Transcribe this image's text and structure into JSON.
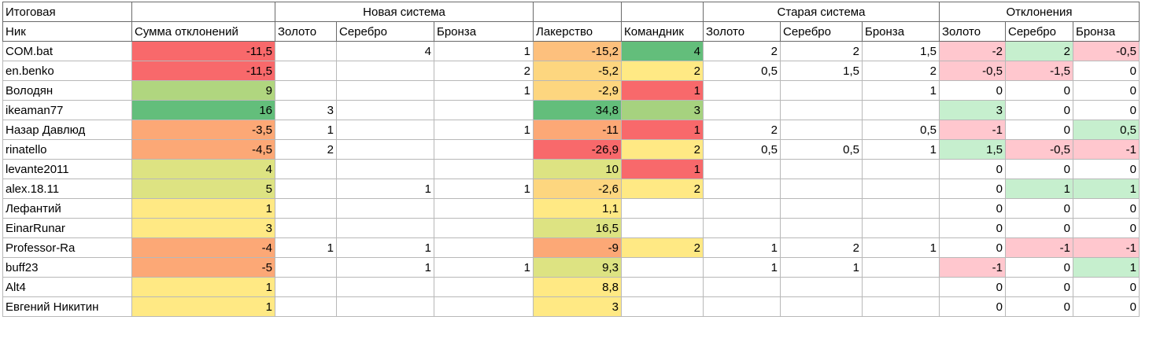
{
  "sheet": {
    "corner_label": "Итоговая",
    "groups": {
      "new_system": "Новая система",
      "old_system": "Старая система",
      "deviations": "Отклонения"
    },
    "columns": [
      "Ник",
      "Сумма отклонений",
      "Золото",
      "Серебро",
      "Бронза",
      "Лакерство",
      "Командник",
      "Золото",
      "Серебро",
      "Бронза",
      "Золото",
      "Серебро",
      "Бронза"
    ],
    "colors": {
      "red": "#f8696b",
      "red_orange": "#fa8c73",
      "orange": "#fca876",
      "light_orange": "#fdc07d",
      "yellow_orange": "#fdd67f",
      "yellow": "#ffe984",
      "yellow_green": "#dde382",
      "light_green": "#b0d67f",
      "mid_green": "#a6d27f",
      "green": "#63be7b",
      "pale_red": "#ffc7ce",
      "pale_green": "#c6efce"
    },
    "rows": [
      {
        "cells": [
          "COM.bat",
          "-11,5",
          "",
          "4",
          "1",
          "-15,2",
          "4",
          "2",
          "2",
          "1,5",
          "-2",
          "2",
          "-0,5"
        ],
        "fills": [
          "",
          "red",
          "",
          "",
          "",
          "light_orange",
          "green",
          "",
          "",
          "",
          "pale_red",
          "pale_green",
          "pale_red"
        ]
      },
      {
        "cells": [
          "en.benko",
          "-11,5",
          "",
          "",
          "2",
          "-5,2",
          "2",
          "0,5",
          "1,5",
          "2",
          "-0,5",
          "-1,5",
          "0"
        ],
        "fills": [
          "",
          "red",
          "",
          "",
          "",
          "yellow_orange",
          "yellow",
          "",
          "",
          "",
          "pale_red",
          "pale_red",
          ""
        ]
      },
      {
        "cells": [
          "Володян",
          "9",
          "",
          "",
          "1",
          "-2,9",
          "1",
          "",
          "",
          "1",
          "0",
          "0",
          "0"
        ],
        "fills": [
          "",
          "light_green",
          "",
          "",
          "",
          "yellow_orange",
          "red",
          "",
          "",
          "",
          "",
          "",
          ""
        ]
      },
      {
        "cells": [
          "ikeaman77",
          "16",
          "3",
          "",
          "",
          "34,8",
          "3",
          "",
          "",
          "",
          "3",
          "0",
          "0"
        ],
        "fills": [
          "",
          "green",
          "",
          "",
          "",
          "green",
          "mid_green",
          "",
          "",
          "",
          "pale_green",
          "",
          ""
        ]
      },
      {
        "cells": [
          "Назар Давлюд",
          "-3,5",
          "1",
          "",
          "1",
          "-11",
          "1",
          "2",
          "",
          "0,5",
          "-1",
          "0",
          "0,5"
        ],
        "fills": [
          "",
          "orange",
          "",
          "",
          "",
          "orange",
          "red",
          "",
          "",
          "",
          "pale_red",
          "",
          "pale_green"
        ]
      },
      {
        "cells": [
          "rinatello",
          "-4,5",
          "2",
          "",
          "",
          "-26,9",
          "2",
          "0,5",
          "0,5",
          "1",
          "1,5",
          "-0,5",
          "-1"
        ],
        "fills": [
          "",
          "orange",
          "",
          "",
          "",
          "red",
          "yellow",
          "",
          "",
          "",
          "pale_green",
          "pale_red",
          "pale_red"
        ]
      },
      {
        "cells": [
          "levante2011",
          "4",
          "",
          "",
          "",
          "10",
          "1",
          "",
          "",
          "",
          "0",
          "0",
          "0"
        ],
        "fills": [
          "",
          "yellow_green",
          "",
          "",
          "",
          "yellow_green",
          "red",
          "",
          "",
          "",
          "",
          "",
          ""
        ]
      },
      {
        "cells": [
          "alex.18.11",
          "5",
          "",
          "1",
          "1",
          "-2,6",
          "2",
          "",
          "",
          "",
          "0",
          "1",
          "1"
        ],
        "fills": [
          "",
          "yellow_green",
          "",
          "",
          "",
          "yellow_orange",
          "yellow",
          "",
          "",
          "",
          "",
          "pale_green",
          "pale_green"
        ]
      },
      {
        "cells": [
          "Лефантий",
          "1",
          "",
          "",
          "",
          "1,1",
          "",
          "",
          "",
          "",
          "0",
          "0",
          "0"
        ],
        "fills": [
          "",
          "yellow",
          "",
          "",
          "",
          "yellow",
          "",
          "",
          "",
          "",
          "",
          "",
          ""
        ]
      },
      {
        "cells": [
          "EinarRunar",
          "3",
          "",
          "",
          "",
          "16,5",
          "",
          "",
          "",
          "",
          "0",
          "0",
          "0"
        ],
        "fills": [
          "",
          "yellow",
          "",
          "",
          "",
          "yellow_green",
          "",
          "",
          "",
          "",
          "",
          "",
          ""
        ]
      },
      {
        "cells": [
          "Professor-Ra",
          "-4",
          "1",
          "1",
          "",
          "-9",
          "2",
          "1",
          "2",
          "1",
          "0",
          "-1",
          "-1"
        ],
        "fills": [
          "",
          "orange",
          "",
          "",
          "",
          "orange",
          "yellow",
          "",
          "",
          "",
          "",
          "pale_red",
          "pale_red"
        ]
      },
      {
        "cells": [
          "buff23",
          "-5",
          "",
          "1",
          "1",
          "9,3",
          "",
          "1",
          "1",
          "",
          "-1",
          "0",
          "1"
        ],
        "fills": [
          "",
          "orange",
          "",
          "",
          "",
          "yellow_green",
          "",
          "",
          "",
          "",
          "pale_red",
          "",
          "pale_green"
        ]
      },
      {
        "cells": [
          "Alt4",
          "1",
          "",
          "",
          "",
          "8,8",
          "",
          "",
          "",
          "",
          "0",
          "0",
          "0"
        ],
        "fills": [
          "",
          "yellow",
          "",
          "",
          "",
          "yellow",
          "",
          "",
          "",
          "",
          "",
          "",
          ""
        ]
      },
      {
        "cells": [
          "Евгений Никитин",
          "1",
          "",
          "",
          "",
          "3",
          "",
          "",
          "",
          "",
          "0",
          "0",
          "0"
        ],
        "fills": [
          "",
          "yellow",
          "",
          "",
          "",
          "yellow",
          "",
          "",
          "",
          "",
          "",
          "",
          ""
        ]
      }
    ]
  }
}
